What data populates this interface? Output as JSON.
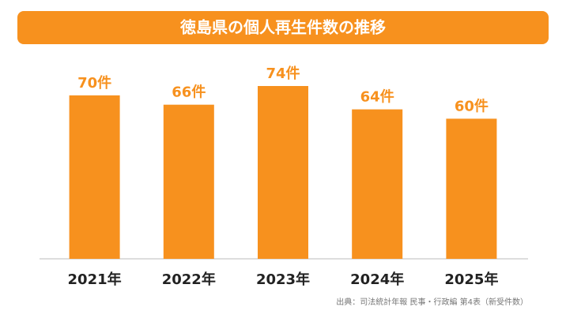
{
  "chart_data": {
    "type": "bar",
    "title": "徳島県の個人再生件数の推移",
    "categories": [
      "2021年",
      "2022年",
      "2023年",
      "2024年",
      "2025年"
    ],
    "values": [
      70,
      66,
      74,
      64,
      60
    ],
    "value_labels": [
      "70件",
      "66件",
      "74件",
      "64件",
      "60件"
    ],
    "color": "#f7911e",
    "source": "出典：司法統計年報 民事・行政編 第4表（新受件数）"
  }
}
